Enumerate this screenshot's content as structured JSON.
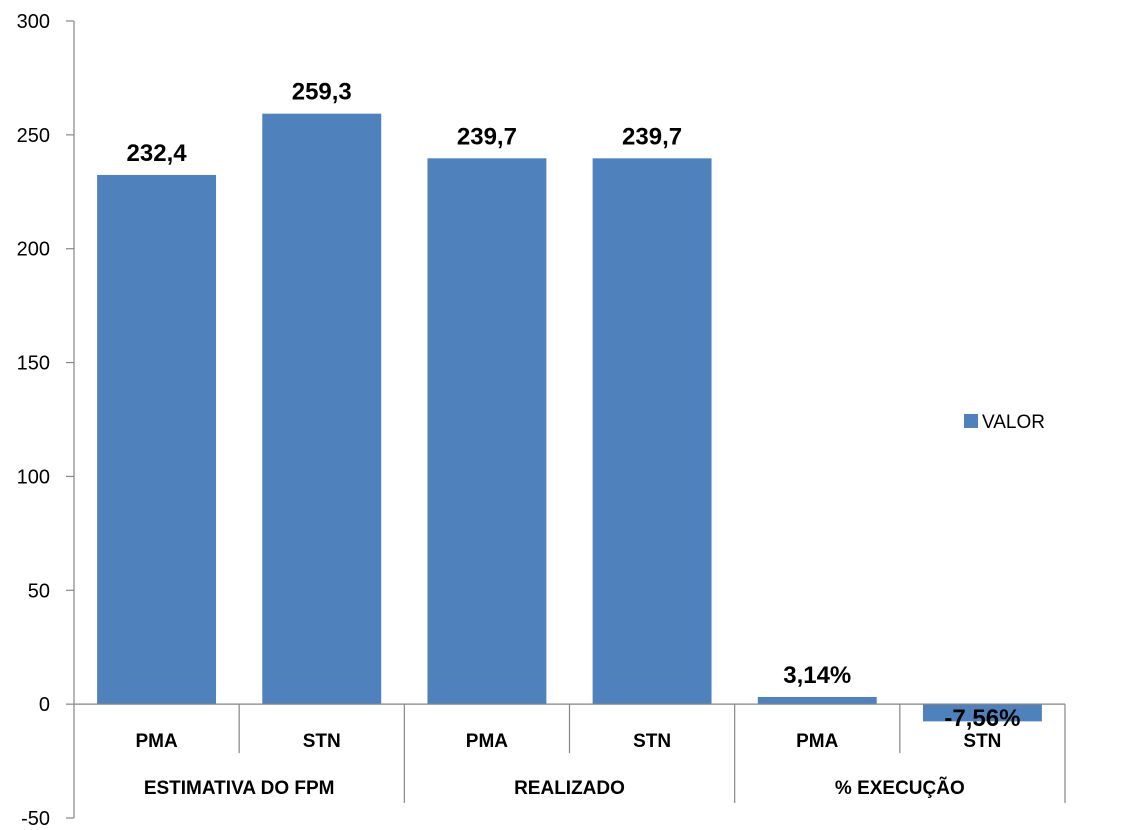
{
  "chart_data": {
    "type": "bar",
    "title": "",
    "xlabel": "",
    "ylabel": "",
    "ylim": [
      -50,
      300
    ],
    "yticks": [
      -50,
      0,
      50,
      100,
      150,
      200,
      250,
      300
    ],
    "grid": false,
    "legend_position": "right",
    "groups": [
      {
        "label": "ESTIMATIVA DO FPM",
        "categories": [
          "PMA",
          "STN"
        ]
      },
      {
        "label": "REALIZADO",
        "categories": [
          "PMA",
          "STN"
        ]
      },
      {
        "label": "% EXECUÇÃO",
        "categories": [
          "PMA",
          "STN"
        ]
      }
    ],
    "series": [
      {
        "name": "VALOR",
        "color": "#4F81BD",
        "values": [
          232.4,
          259.3,
          239.7,
          239.7,
          3.14,
          -7.56
        ],
        "data_labels": [
          "232,4",
          "259,3",
          "239,7",
          "239,7",
          "3,14%",
          "-7,56%"
        ]
      }
    ]
  }
}
